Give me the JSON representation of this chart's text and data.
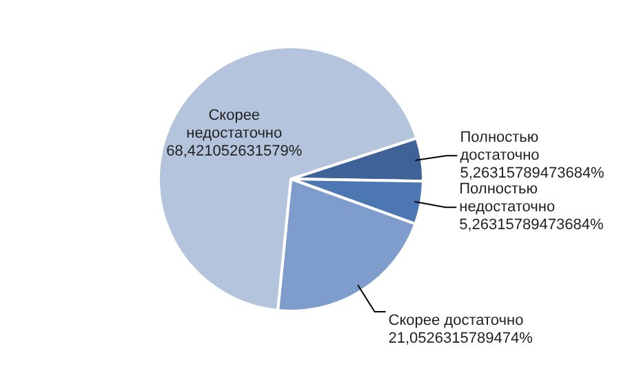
{
  "chart_data": {
    "type": "pie",
    "categories": [
      "Полностью достаточно",
      "Полностью недостаточно",
      "Скорее достаточно",
      "Скорее недостаточно"
    ],
    "values": [
      5.26315789473684,
      5.26315789473684,
      21.0526315789474,
      68.421052631579
    ],
    "colors": [
      "#3f6399",
      "#4d77b3",
      "#7f9dcc",
      "#b5c4dd"
    ],
    "value_labels": [
      "5,26315789473684%",
      "5,26315789473684%",
      "21,0526315789474%",
      "68,421052631579%"
    ],
    "legend": false
  }
}
